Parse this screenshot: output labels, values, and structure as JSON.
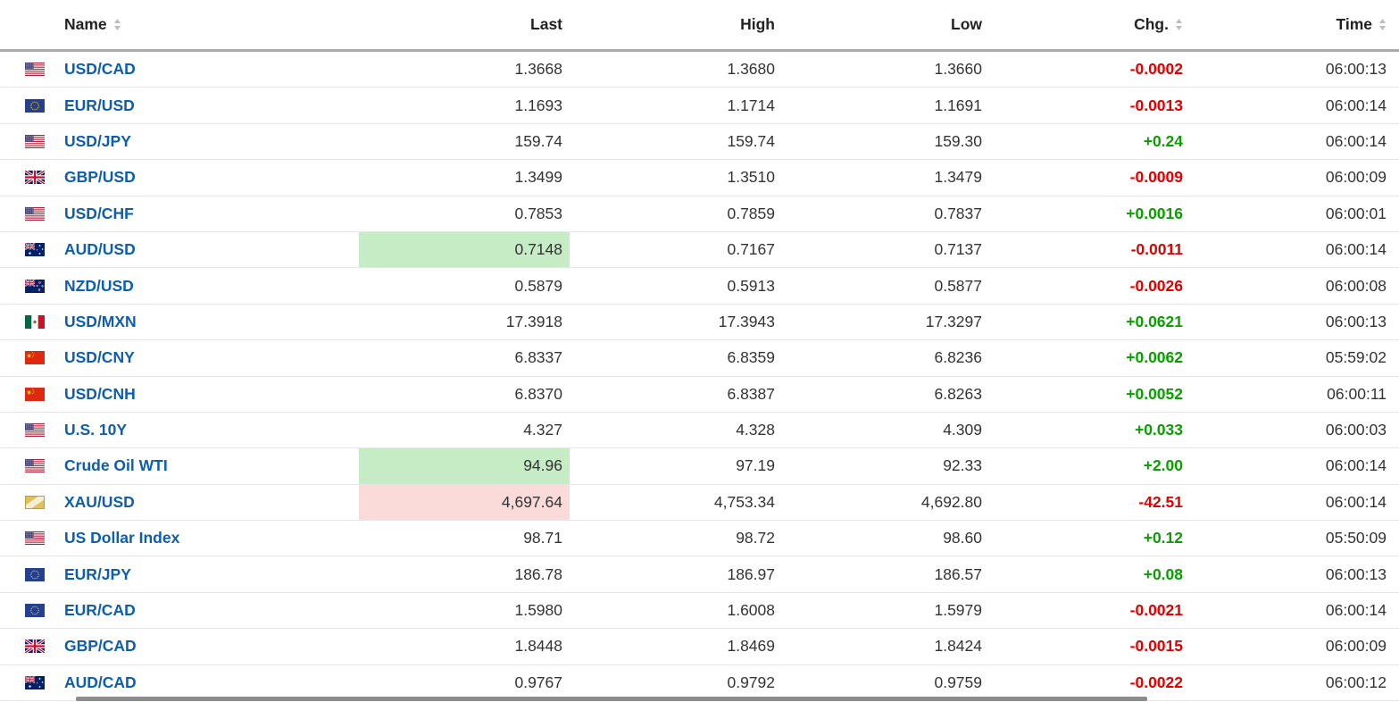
{
  "table": {
    "columns": [
      {
        "key": "name",
        "label": "Name",
        "sortable": true,
        "align": "left"
      },
      {
        "key": "last",
        "label": "Last",
        "sortable": false,
        "align": "right"
      },
      {
        "key": "high",
        "label": "High",
        "sortable": false,
        "align": "right"
      },
      {
        "key": "low",
        "label": "Low",
        "sortable": false,
        "align": "right"
      },
      {
        "key": "chg",
        "label": "Chg.",
        "sortable": true,
        "align": "right"
      },
      {
        "key": "time",
        "label": "Time",
        "sortable": true,
        "align": "right"
      }
    ],
    "rows": [
      {
        "name": "USD/CAD",
        "flag": "us",
        "last": "1.3668",
        "high": "1.3680",
        "low": "1.3660",
        "chg": "-0.0002",
        "chg_dir": "down",
        "time": "06:00:13",
        "last_highlight": "none"
      },
      {
        "name": "EUR/USD",
        "flag": "eu",
        "last": "1.1693",
        "high": "1.1714",
        "low": "1.1691",
        "chg": "-0.0013",
        "chg_dir": "down",
        "time": "06:00:14",
        "last_highlight": "none"
      },
      {
        "name": "USD/JPY",
        "flag": "us",
        "last": "159.74",
        "high": "159.74",
        "low": "159.30",
        "chg": "+0.24",
        "chg_dir": "up",
        "time": "06:00:14",
        "last_highlight": "none"
      },
      {
        "name": "GBP/USD",
        "flag": "gb",
        "last": "1.3499",
        "high": "1.3510",
        "low": "1.3479",
        "chg": "-0.0009",
        "chg_dir": "down",
        "time": "06:00:09",
        "last_highlight": "none"
      },
      {
        "name": "USD/CHF",
        "flag": "us",
        "last": "0.7853",
        "high": "0.7859",
        "low": "0.7837",
        "chg": "+0.0016",
        "chg_dir": "up",
        "time": "06:00:01",
        "last_highlight": "none"
      },
      {
        "name": "AUD/USD",
        "flag": "au",
        "last": "0.7148",
        "high": "0.7167",
        "low": "0.7137",
        "chg": "-0.0011",
        "chg_dir": "down",
        "time": "06:00:14",
        "last_highlight": "up"
      },
      {
        "name": "NZD/USD",
        "flag": "nz",
        "last": "0.5879",
        "high": "0.5913",
        "low": "0.5877",
        "chg": "-0.0026",
        "chg_dir": "down",
        "time": "06:00:08",
        "last_highlight": "none"
      },
      {
        "name": "USD/MXN",
        "flag": "mx",
        "last": "17.3918",
        "high": "17.3943",
        "low": "17.3297",
        "chg": "+0.0621",
        "chg_dir": "up",
        "time": "06:00:13",
        "last_highlight": "none"
      },
      {
        "name": "USD/CNY",
        "flag": "cn",
        "last": "6.8337",
        "high": "6.8359",
        "low": "6.8236",
        "chg": "+0.0062",
        "chg_dir": "up",
        "time": "05:59:02",
        "last_highlight": "none"
      },
      {
        "name": "USD/CNH",
        "flag": "cn",
        "last": "6.8370",
        "high": "6.8387",
        "low": "6.8263",
        "chg": "+0.0052",
        "chg_dir": "up",
        "time": "06:00:11",
        "last_highlight": "none"
      },
      {
        "name": "U.S. 10Y",
        "flag": "us",
        "last": "4.327",
        "high": "4.328",
        "low": "4.309",
        "chg": "+0.033",
        "chg_dir": "up",
        "time": "06:00:03",
        "last_highlight": "none"
      },
      {
        "name": "Crude Oil WTI",
        "flag": "us",
        "last": "94.96",
        "high": "97.19",
        "low": "92.33",
        "chg": "+2.00",
        "chg_dir": "up",
        "time": "06:00:14",
        "last_highlight": "up"
      },
      {
        "name": "XAU/USD",
        "flag": "gold",
        "last": "4,697.64",
        "high": "4,753.34",
        "low": "4,692.80",
        "chg": "-42.51",
        "chg_dir": "down",
        "time": "06:00:14",
        "last_highlight": "down"
      },
      {
        "name": "US Dollar Index",
        "flag": "us",
        "last": "98.71",
        "high": "98.72",
        "low": "98.60",
        "chg": "+0.12",
        "chg_dir": "up",
        "time": "05:50:09",
        "last_highlight": "none"
      },
      {
        "name": "EUR/JPY",
        "flag": "eu",
        "last": "186.78",
        "high": "186.97",
        "low": "186.57",
        "chg": "+0.08",
        "chg_dir": "up",
        "time": "06:00:13",
        "last_highlight": "none"
      },
      {
        "name": "EUR/CAD",
        "flag": "eu",
        "last": "1.5980",
        "high": "1.6008",
        "low": "1.5979",
        "chg": "-0.0021",
        "chg_dir": "down",
        "time": "06:00:14",
        "last_highlight": "none"
      },
      {
        "name": "GBP/CAD",
        "flag": "gb",
        "last": "1.8448",
        "high": "1.8469",
        "low": "1.8424",
        "chg": "-0.0015",
        "chg_dir": "down",
        "time": "06:00:09",
        "last_highlight": "none"
      },
      {
        "name": "AUD/CAD",
        "flag": "au",
        "last": "0.9767",
        "high": "0.9792",
        "low": "0.9759",
        "chg": "-0.0022",
        "chg_dir": "down",
        "time": "06:00:12",
        "last_highlight": "none"
      }
    ]
  },
  "colors": {
    "name_link": "#0d5eac",
    "value_text": "#333333",
    "change_up": "#0a9e00",
    "change_down": "#e00000",
    "highlight_up": "#c5ecc5",
    "highlight_down": "#fbdada",
    "header_border": "#ababab",
    "row_border": "#e6e6e6",
    "sort_icon": "#bdbdbd"
  }
}
